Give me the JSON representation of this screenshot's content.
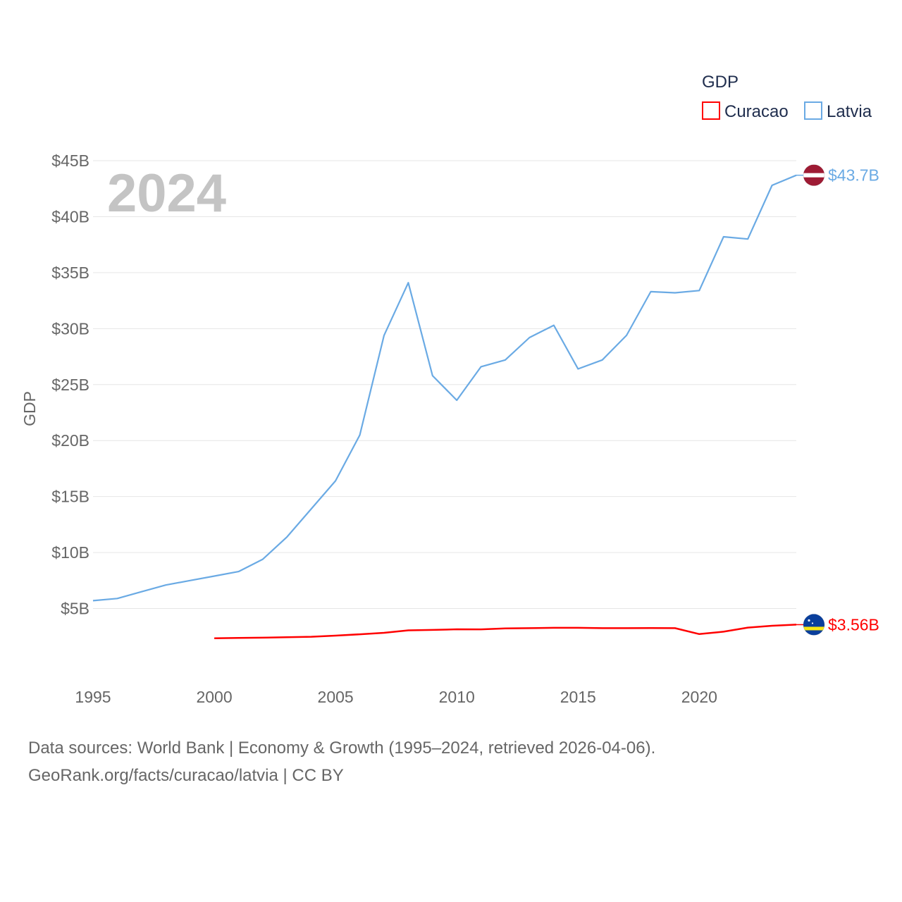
{
  "chart_data": {
    "type": "line",
    "ylabel": "GDP",
    "legend_title": "GDP",
    "legend_placement": "top-right",
    "year_label": "2024",
    "x_ticks": [
      1995,
      2000,
      2005,
      2010,
      2015,
      2020
    ],
    "x_range": [
      1995,
      2024
    ],
    "y_range": [
      0,
      45
    ],
    "y_ticks": [
      {
        "value": 5,
        "label": "$5B"
      },
      {
        "value": 10,
        "label": "$10B"
      },
      {
        "value": 15,
        "label": "$15B"
      },
      {
        "value": 20,
        "label": "$20B"
      },
      {
        "value": 25,
        "label": "$25B"
      },
      {
        "value": 30,
        "label": "$30B"
      },
      {
        "value": 35,
        "label": "$35B"
      },
      {
        "value": 40,
        "label": "$40B"
      },
      {
        "value": 45,
        "label": "$45B"
      }
    ],
    "grid": true,
    "series": [
      {
        "name": "Curacao",
        "color": "#ff0000",
        "flag_icon": "curacao-flag-icon",
        "end_label": "$3.56B",
        "x": [
          2000,
          2001,
          2002,
          2003,
          2004,
          2005,
          2006,
          2007,
          2008,
          2009,
          2010,
          2011,
          2012,
          2013,
          2014,
          2015,
          2016,
          2017,
          2018,
          2019,
          2020,
          2021,
          2022,
          2023,
          2024
        ],
        "values": [
          2.35,
          2.38,
          2.4,
          2.44,
          2.48,
          2.58,
          2.7,
          2.83,
          3.05,
          3.09,
          3.15,
          3.14,
          3.22,
          3.25,
          3.28,
          3.28,
          3.25,
          3.25,
          3.26,
          3.25,
          2.72,
          2.93,
          3.3,
          3.46,
          3.56
        ]
      },
      {
        "name": "Latvia",
        "color": "#6aaae4",
        "flag_icon": "latvia-flag-icon",
        "end_label": "$43.7B",
        "x": [
          1995,
          1996,
          1997,
          1998,
          1999,
          2000,
          2001,
          2002,
          2003,
          2004,
          2005,
          2006,
          2007,
          2008,
          2009,
          2010,
          2011,
          2012,
          2013,
          2014,
          2015,
          2016,
          2017,
          2018,
          2019,
          2020,
          2021,
          2022,
          2023,
          2024
        ],
        "values": [
          5.7,
          5.9,
          6.5,
          7.1,
          7.5,
          7.9,
          8.3,
          9.4,
          11.4,
          13.9,
          16.4,
          20.5,
          29.4,
          34.1,
          25.8,
          23.6,
          26.6,
          27.2,
          29.2,
          30.3,
          26.4,
          27.2,
          29.4,
          33.3,
          33.2,
          33.4,
          38.2,
          38.0,
          42.8,
          43.7
        ]
      }
    ]
  },
  "footer": {
    "source_line1": "Data sources: World Bank | Economy & Growth (1995–2024, retrieved 2026-04-06).",
    "source_line2": "GeoRank.org/facts/curacao/latvia | CC BY"
  }
}
